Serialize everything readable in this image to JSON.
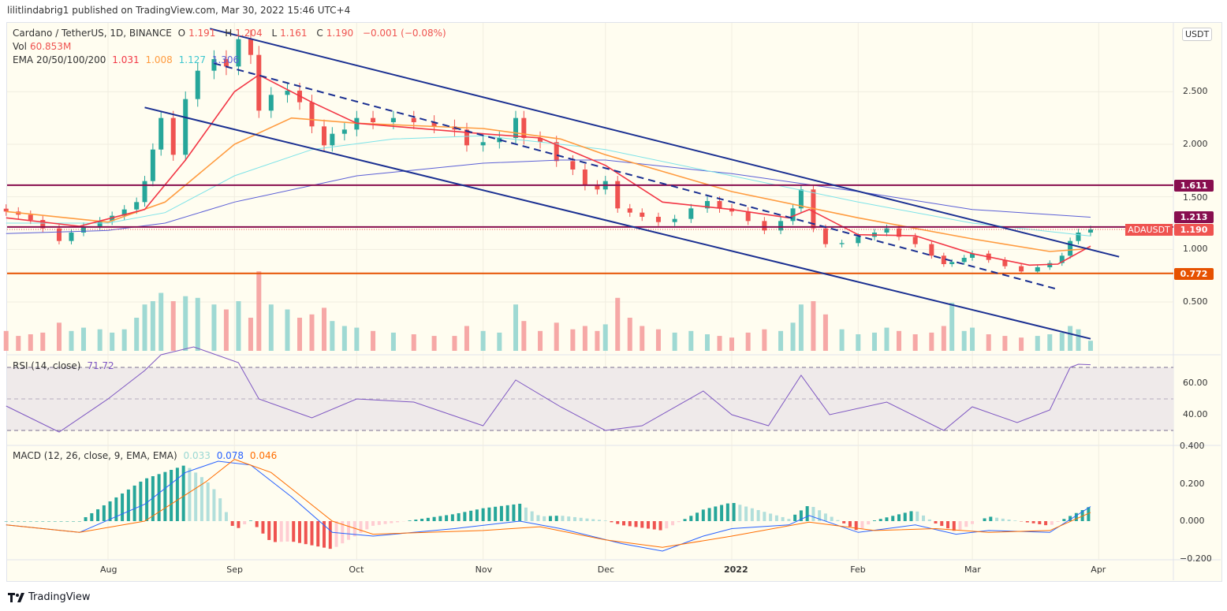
{
  "published": "lilitlindabrig1 published on TradingView.com, Mar 30, 2022 15:46 UTC+4",
  "legend": {
    "symbol": "Cardano / TetherUS, 1D, BINANCE",
    "o_label": "O",
    "o": "1.191",
    "h_label": "H",
    "h": "1.204",
    "l_label": "L",
    "l": "1.161",
    "c_label": "C",
    "c": "1.190",
    "change": "−0.001 (−0.08%)",
    "vol_label": "Vol",
    "vol": "60.853M",
    "ema_label": "EMA 20/50/100/200",
    "ema20": "1.031",
    "ema50": "1.008",
    "ema100": "1.127",
    "ema200": "1.306",
    "rsi_label": "RSI (14, close)",
    "rsi": "71.72",
    "macd_label": "MACD (12, 26, close, 9, EMA, EMA)",
    "macd_hist": "0.033",
    "macd": "0.078",
    "macd_signal": "0.046"
  },
  "currency_button": "USDT",
  "symbol_tag": "ADAUSDT",
  "logo_text": "TradingView",
  "colors": {
    "up": "#26a69a",
    "down": "#ef5350",
    "ema20": "#f23645",
    "ema50": "#ff9b3f",
    "ema100": "#7de3e8",
    "ema200": "#5b5fd6",
    "channel": "#1a2f91",
    "level_purple": "#880e4f",
    "level_orange": "#e65100",
    "rsi": "#7e57c2",
    "macd": "#2962ff",
    "signal": "#ff6d00"
  },
  "chart_data": [
    {
      "type": "candlestick",
      "ylim": [
        0.0,
        3.1
      ],
      "price_ticks": [
        "2.500",
        "2.000",
        "1.500",
        "1.000",
        "0.500"
      ],
      "time_ticks": [
        {
          "date": "2021-08-01",
          "label": "Aug"
        },
        {
          "date": "2021-09-01",
          "label": "Sep"
        },
        {
          "date": "2021-10-01",
          "label": "Oct"
        },
        {
          "date": "2021-11-01",
          "label": "Nov"
        },
        {
          "date": "2021-12-01",
          "label": "Dec"
        },
        {
          "date": "2022-01-01",
          "label": "2022"
        },
        {
          "date": "2022-02-01",
          "label": "Feb"
        },
        {
          "date": "2022-03-01",
          "label": "Mar"
        },
        {
          "date": "2022-04-01",
          "label": "Apr"
        }
      ],
      "last_price": "1.190",
      "levels": [
        {
          "value": "1.611",
          "color": "level_purple"
        },
        {
          "value": "1.213",
          "color": "level_purple"
        },
        {
          "value": "0.772",
          "color": "level_orange"
        }
      ],
      "closes": [
        [
          "2021-07-07",
          1.36,
          120
        ],
        [
          "2021-07-10",
          1.33,
          90
        ],
        [
          "2021-07-13",
          1.28,
          100
        ],
        [
          "2021-07-16",
          1.2,
          110
        ],
        [
          "2021-07-20",
          1.08,
          170
        ],
        [
          "2021-07-23",
          1.16,
          120
        ],
        [
          "2021-07-26",
          1.22,
          140
        ],
        [
          "2021-07-30",
          1.27,
          130
        ],
        [
          "2021-08-02",
          1.32,
          110
        ],
        [
          "2021-08-05",
          1.38,
          130
        ],
        [
          "2021-08-08",
          1.45,
          200
        ],
        [
          "2021-08-10",
          1.65,
          280
        ],
        [
          "2021-08-12",
          1.95,
          300
        ],
        [
          "2021-08-14",
          2.25,
          350
        ],
        [
          "2021-08-17",
          1.9,
          300
        ],
        [
          "2021-08-20",
          2.43,
          330
        ],
        [
          "2021-08-23",
          2.7,
          320
        ],
        [
          "2021-08-27",
          2.81,
          280
        ],
        [
          "2021-08-30",
          2.74,
          250
        ],
        [
          "2021-09-02",
          3.0,
          300
        ],
        [
          "2021-09-05",
          2.85,
          200
        ],
        [
          "2021-09-07",
          2.32,
          480
        ],
        [
          "2021-09-10",
          2.47,
          280
        ],
        [
          "2021-09-14",
          2.51,
          250
        ],
        [
          "2021-09-17",
          2.4,
          200
        ],
        [
          "2021-09-20",
          2.17,
          220
        ],
        [
          "2021-09-23",
          1.99,
          260
        ],
        [
          "2021-09-25",
          2.1,
          180
        ],
        [
          "2021-09-28",
          2.14,
          150
        ],
        [
          "2021-10-01",
          2.25,
          140
        ],
        [
          "2021-10-05",
          2.21,
          120
        ],
        [
          "2021-10-10",
          2.25,
          110
        ],
        [
          "2021-10-15",
          2.21,
          100
        ],
        [
          "2021-10-20",
          2.17,
          90
        ],
        [
          "2021-10-25",
          2.14,
          90
        ],
        [
          "2021-10-28",
          1.99,
          150
        ],
        [
          "2021-11-01",
          2.02,
          120
        ],
        [
          "2021-11-05",
          2.06,
          110
        ],
        [
          "2021-11-09",
          2.25,
          280
        ],
        [
          "2021-11-11",
          2.06,
          180
        ],
        [
          "2021-11-15",
          2.02,
          120
        ],
        [
          "2021-11-19",
          1.84,
          170
        ],
        [
          "2021-11-23",
          1.76,
          130
        ],
        [
          "2021-11-26",
          1.61,
          150
        ],
        [
          "2021-11-29",
          1.57,
          120
        ],
        [
          "2021-12-01",
          1.65,
          160
        ],
        [
          "2021-12-04",
          1.39,
          320
        ],
        [
          "2021-12-07",
          1.35,
          200
        ],
        [
          "2021-12-10",
          1.31,
          150
        ],
        [
          "2021-12-14",
          1.26,
          130
        ],
        [
          "2021-12-18",
          1.29,
          110
        ],
        [
          "2021-12-22",
          1.39,
          120
        ],
        [
          "2021-12-26",
          1.46,
          100
        ],
        [
          "2021-12-29",
          1.39,
          90
        ],
        [
          "2022-01-01",
          1.36,
          80
        ],
        [
          "2022-01-05",
          1.27,
          110
        ],
        [
          "2022-01-09",
          1.18,
          130
        ],
        [
          "2022-01-13",
          1.27,
          120
        ],
        [
          "2022-01-16",
          1.39,
          170
        ],
        [
          "2022-01-18",
          1.57,
          280
        ],
        [
          "2022-01-21",
          1.2,
          300
        ],
        [
          "2022-01-24",
          1.05,
          220
        ],
        [
          "2022-01-28",
          1.06,
          130
        ],
        [
          "2022-02-01",
          1.12,
          100
        ],
        [
          "2022-02-05",
          1.16,
          110
        ],
        [
          "2022-02-08",
          1.2,
          140
        ],
        [
          "2022-02-11",
          1.12,
          120
        ],
        [
          "2022-02-15",
          1.05,
          100
        ],
        [
          "2022-02-19",
          0.94,
          110
        ],
        [
          "2022-02-22",
          0.86,
          150
        ],
        [
          "2022-02-24",
          0.88,
          290
        ],
        [
          "2022-02-27",
          0.92,
          120
        ],
        [
          "2022-03-01",
          0.96,
          140
        ],
        [
          "2022-03-05",
          0.9,
          100
        ],
        [
          "2022-03-09",
          0.84,
          90
        ],
        [
          "2022-03-13",
          0.79,
          80
        ],
        [
          "2022-03-17",
          0.83,
          90
        ],
        [
          "2022-03-20",
          0.87,
          100
        ],
        [
          "2022-03-23",
          0.94,
          110
        ],
        [
          "2022-03-25",
          1.08,
          150
        ],
        [
          "2022-03-27",
          1.16,
          130
        ],
        [
          "2022-03-30",
          1.19,
          61
        ]
      ],
      "ema": {
        "ema20": [
          [
            "2021-07-07",
            1.3
          ],
          [
            "2021-07-25",
            1.22
          ],
          [
            "2021-08-10",
            1.38
          ],
          [
            "2021-08-20",
            1.85
          ],
          [
            "2021-09-01",
            2.5
          ],
          [
            "2021-09-07",
            2.66
          ],
          [
            "2021-09-20",
            2.4
          ],
          [
            "2021-10-01",
            2.2
          ],
          [
            "2021-11-01",
            2.1
          ],
          [
            "2021-11-15",
            2.06
          ],
          [
            "2021-12-01",
            1.8
          ],
          [
            "2021-12-15",
            1.45
          ],
          [
            "2022-01-01",
            1.38
          ],
          [
            "2022-01-15",
            1.3
          ],
          [
            "2022-01-20",
            1.38
          ],
          [
            "2022-02-01",
            1.14
          ],
          [
            "2022-02-15",
            1.13
          ],
          [
            "2022-03-01",
            0.96
          ],
          [
            "2022-03-15",
            0.85
          ],
          [
            "2022-03-22",
            0.86
          ],
          [
            "2022-03-30",
            1.031
          ]
        ],
        "ema50": [
          [
            "2021-07-07",
            1.36
          ],
          [
            "2021-08-01",
            1.26
          ],
          [
            "2021-08-15",
            1.45
          ],
          [
            "2021-09-01",
            2.0
          ],
          [
            "2021-09-15",
            2.25
          ],
          [
            "2021-10-01",
            2.2
          ],
          [
            "2021-11-01",
            2.15
          ],
          [
            "2021-11-20",
            2.05
          ],
          [
            "2021-12-01",
            1.9
          ],
          [
            "2022-01-01",
            1.55
          ],
          [
            "2022-02-01",
            1.3
          ],
          [
            "2022-03-01",
            1.1
          ],
          [
            "2022-03-20",
            0.98
          ],
          [
            "2022-03-30",
            1.008
          ]
        ],
        "ema100": [
          [
            "2021-07-07",
            1.25
          ],
          [
            "2021-08-01",
            1.25
          ],
          [
            "2021-08-15",
            1.35
          ],
          [
            "2021-09-01",
            1.7
          ],
          [
            "2021-09-20",
            1.95
          ],
          [
            "2021-10-10",
            2.05
          ],
          [
            "2021-11-01",
            2.08
          ],
          [
            "2021-11-20",
            2.0
          ],
          [
            "2021-12-01",
            1.95
          ],
          [
            "2022-01-01",
            1.7
          ],
          [
            "2022-02-01",
            1.45
          ],
          [
            "2022-03-01",
            1.25
          ],
          [
            "2022-03-30",
            1.127
          ]
        ],
        "ema200": [
          [
            "2021-07-07",
            1.15
          ],
          [
            "2021-08-01",
            1.18
          ],
          [
            "2021-08-15",
            1.25
          ],
          [
            "2021-09-01",
            1.45
          ],
          [
            "2021-10-01",
            1.7
          ],
          [
            "2021-11-01",
            1.82
          ],
          [
            "2021-11-20",
            1.85
          ],
          [
            "2021-12-01",
            1.85
          ],
          [
            "2022-01-01",
            1.72
          ],
          [
            "2022-02-01",
            1.55
          ],
          [
            "2022-03-01",
            1.38
          ],
          [
            "2022-03-30",
            1.306
          ]
        ]
      },
      "trendlines": [
        {
          "from": [
            "2021-08-26",
            3.1
          ],
          "to": [
            "2022-04-06",
            0.93
          ],
          "style": "solid"
        },
        {
          "from": [
            "2021-08-10",
            2.35
          ],
          "to": [
            "2022-03-30",
            0.15
          ],
          "style": "solid"
        },
        {
          "from": [
            "2021-08-27",
            2.77
          ],
          "to": [
            "2022-03-22",
            0.62
          ],
          "style": "dashed"
        }
      ]
    },
    {
      "type": "line",
      "name": "RSI (14, close)",
      "ylim": [
        20,
        80
      ],
      "bands": [
        70,
        30
      ],
      "mid": 50,
      "ticks": [
        "60.00",
        "40.00"
      ],
      "values": [
        [
          "2021-07-07",
          45.5
        ],
        [
          "2021-07-20",
          29
        ],
        [
          "2021-08-01",
          50
        ],
        [
          "2021-08-10",
          68
        ],
        [
          "2021-08-14",
          78
        ],
        [
          "2021-08-22",
          83
        ],
        [
          "2021-09-02",
          73
        ],
        [
          "2021-09-07",
          50
        ],
        [
          "2021-09-20",
          38
        ],
        [
          "2021-10-01",
          50
        ],
        [
          "2021-10-15",
          48
        ],
        [
          "2021-11-01",
          33
        ],
        [
          "2021-11-09",
          62
        ],
        [
          "2021-11-20",
          45
        ],
        [
          "2021-12-01",
          30
        ],
        [
          "2021-12-10",
          33
        ],
        [
          "2021-12-25",
          55
        ],
        [
          "2022-01-01",
          40
        ],
        [
          "2022-01-10",
          33
        ],
        [
          "2022-01-18",
          65
        ],
        [
          "2022-01-25",
          40
        ],
        [
          "2022-02-08",
          48
        ],
        [
          "2022-02-22",
          30
        ],
        [
          "2022-03-01",
          45
        ],
        [
          "2022-03-12",
          35
        ],
        [
          "2022-03-20",
          43
        ],
        [
          "2022-03-25",
          70
        ],
        [
          "2022-03-27",
          72
        ],
        [
          "2022-03-30",
          71.72
        ]
      ]
    },
    {
      "type": "line",
      "name": "MACD (12, 26, close, 9, EMA, EMA)",
      "ylim": [
        -0.2,
        0.4
      ],
      "ticks": [
        "0.400",
        "0.200",
        "0.000",
        "−0.200"
      ],
      "macd": [
        [
          "2021-07-07",
          -0.02
        ],
        [
          "2021-07-25",
          -0.06
        ],
        [
          "2021-08-10",
          0.09
        ],
        [
          "2021-08-20",
          0.26
        ],
        [
          "2021-08-28",
          0.32
        ],
        [
          "2021-09-05",
          0.3
        ],
        [
          "2021-09-15",
          0.13
        ],
        [
          "2021-09-25",
          -0.06
        ],
        [
          "2021-10-05",
          -0.08
        ],
        [
          "2021-10-25",
          -0.04
        ],
        [
          "2021-11-10",
          0.0
        ],
        [
          "2021-11-20",
          -0.04
        ],
        [
          "2021-12-05",
          -0.12
        ],
        [
          "2021-12-15",
          -0.16
        ],
        [
          "2021-12-25",
          -0.08
        ],
        [
          "2022-01-01",
          -0.04
        ],
        [
          "2022-01-15",
          -0.02
        ],
        [
          "2022-01-20",
          0.03
        ],
        [
          "2022-02-01",
          -0.06
        ],
        [
          "2022-02-15",
          -0.02
        ],
        [
          "2022-02-25",
          -0.07
        ],
        [
          "2022-03-05",
          -0.05
        ],
        [
          "2022-03-20",
          -0.06
        ],
        [
          "2022-03-30",
          0.078
        ]
      ],
      "signal": [
        [
          "2021-07-07",
          -0.02
        ],
        [
          "2021-07-25",
          -0.06
        ],
        [
          "2021-08-10",
          0.0
        ],
        [
          "2021-08-25",
          0.21
        ],
        [
          "2021-09-01",
          0.33
        ],
        [
          "2021-09-10",
          0.26
        ],
        [
          "2021-09-25",
          0.0
        ],
        [
          "2021-10-05",
          -0.07
        ],
        [
          "2021-11-01",
          -0.05
        ],
        [
          "2021-11-15",
          -0.03
        ],
        [
          "2021-12-01",
          -0.1
        ],
        [
          "2021-12-15",
          -0.14
        ],
        [
          "2022-01-01",
          -0.08
        ],
        [
          "2022-01-20",
          -0.005
        ],
        [
          "2022-02-05",
          -0.05
        ],
        [
          "2022-02-20",
          -0.04
        ],
        [
          "2022-03-05",
          -0.06
        ],
        [
          "2022-03-20",
          -0.05
        ],
        [
          "2022-03-30",
          0.046
        ]
      ]
    }
  ]
}
